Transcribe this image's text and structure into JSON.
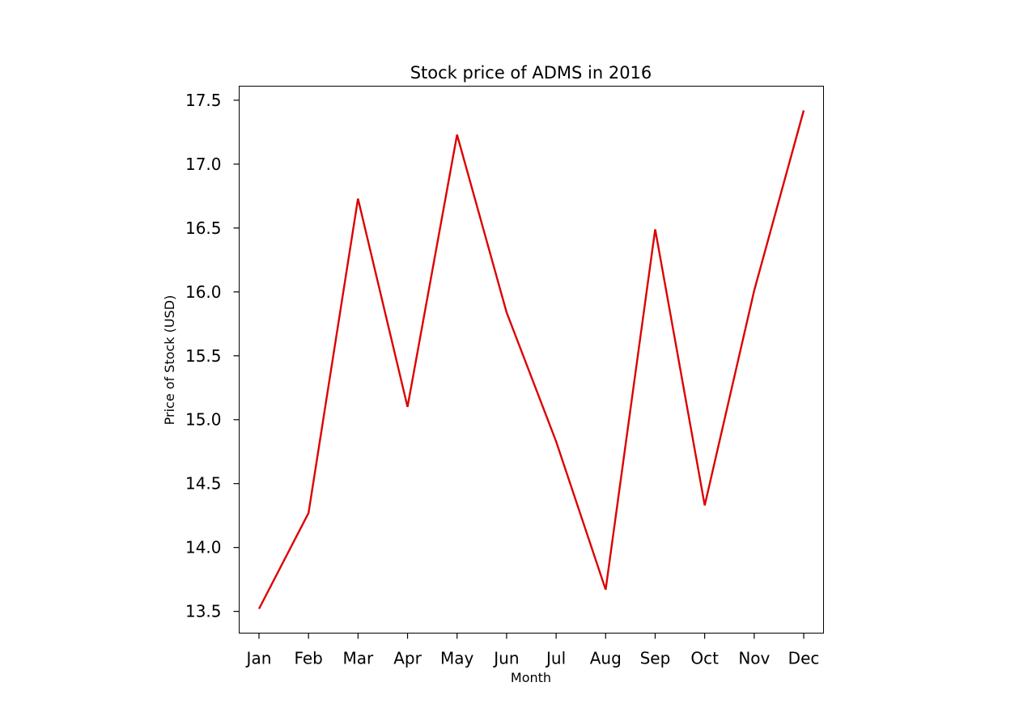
{
  "chart_data": {
    "type": "line",
    "title": "Stock price of ADMS in 2016",
    "xlabel": "Month",
    "ylabel": "Price of Stock (USD)",
    "categories": [
      "Jan",
      "Feb",
      "Mar",
      "Apr",
      "May",
      "Jun",
      "Jul",
      "Aug",
      "Sep",
      "Oct",
      "Nov",
      "Dec"
    ],
    "series": [
      {
        "color": "#dd0000",
        "values": [
          13.52,
          14.27,
          16.73,
          15.1,
          17.23,
          15.84,
          14.83,
          13.67,
          16.49,
          14.33,
          16.01,
          17.42
        ]
      }
    ],
    "ylim": [
      13.33,
      17.61
    ],
    "yticks": [
      "13.5",
      "14.0",
      "14.5",
      "15.0",
      "15.5",
      "16.0",
      "16.5",
      "17.0",
      "17.5"
    ],
    "ytick_values": [
      13.5,
      14.0,
      14.5,
      15.0,
      15.5,
      16.0,
      16.5,
      17.0,
      17.5
    ],
    "grid": false,
    "legend": "none"
  }
}
